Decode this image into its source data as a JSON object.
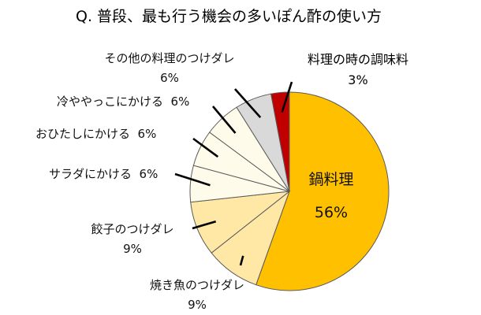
{
  "chart_data": {
    "type": "pie",
    "title": "Q. 普段、最も行う機会の多いぽん酢の使い方",
    "start_angle_deg": 0,
    "direction": "clockwise",
    "slices": [
      {
        "label": "鍋料理",
        "value": 56,
        "value_text": "56%",
        "color": "#FFC000"
      },
      {
        "label": "焼き魚のつけダレ",
        "value": 9,
        "value_text": "9%",
        "color": "#FFE8A6"
      },
      {
        "label": "餃子のつけダレ",
        "value": 9,
        "value_text": "9%",
        "color": "#FFE8A6"
      },
      {
        "label": "サラダにかける",
        "value": 6,
        "value_text": "6%",
        "color": "#FFFBEA"
      },
      {
        "label": "おひたしにかける",
        "value": 6,
        "value_text": "6%",
        "color": "#FFFBEA"
      },
      {
        "label": "冷ややっこにかける",
        "value": 6,
        "value_text": "6%",
        "color": "#FFFBEA"
      },
      {
        "label": "その他の料理のつけダレ",
        "value": 6,
        "value_text": "6%",
        "color": "#D9D9D9"
      },
      {
        "label": "料理の時の調味料",
        "value": 3,
        "value_text": "3%",
        "color": "#C00000"
      }
    ]
  }
}
